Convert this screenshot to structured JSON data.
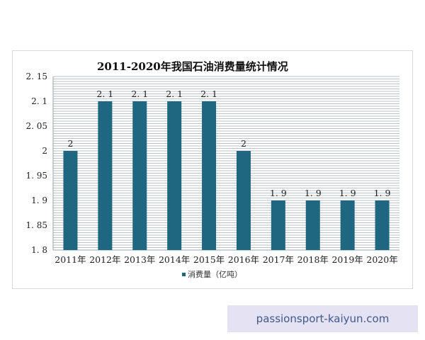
{
  "chart_data": {
    "type": "bar",
    "title": "2011-2020年我国石油消费量统计情况",
    "categories": [
      "2011年",
      "2012年",
      "2013年",
      "2014年",
      "2015年",
      "2016年",
      "2017年",
      "2018年",
      "2019年",
      "2020年"
    ],
    "series": [
      {
        "name": "消费量（亿吨）",
        "values": [
          2,
          2.1,
          2.1,
          2.1,
          2.1,
          2,
          1.9,
          1.9,
          1.9,
          1.9
        ],
        "color": "#1f6680"
      }
    ],
    "data_labels": [
      "2",
      "2. 1",
      "2. 1",
      "2. 1",
      "2. 1",
      "2",
      "1. 9",
      "1. 9",
      "1. 9",
      "1. 9"
    ],
    "ylim": [
      1.8,
      2.15
    ],
    "yticks": [
      {
        "value": 2.15,
        "label": "2. 15"
      },
      {
        "value": 2.1,
        "label": "2. 1"
      },
      {
        "value": 2.05,
        "label": "2. 05"
      },
      {
        "value": 2.0,
        "label": "2"
      },
      {
        "value": 1.95,
        "label": "1. 95"
      },
      {
        "value": 1.9,
        "label": "1. 9"
      },
      {
        "value": 1.85,
        "label": "1. 85"
      },
      {
        "value": 1.8,
        "label": "1. 8"
      }
    ],
    "grid": true,
    "grid_color": "#b9c3c7",
    "legend_position": "bottom",
    "xlabel": "",
    "ylabel": ""
  },
  "watermark": {
    "text": "passionsport-kaiyun.com"
  }
}
